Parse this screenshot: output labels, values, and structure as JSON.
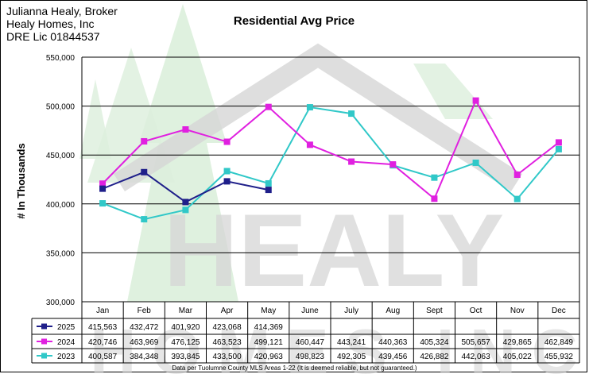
{
  "header": {
    "broker_lines": [
      "Julianna Healy, Broker",
      "Healy Homes, Inc",
      "DRE Lic 01844537"
    ]
  },
  "footnote": "Data per Tuolumne County MLS Areas 1-22 (It is deemed reliable, but not guaranteed.)",
  "watermark": {
    "text": "HEALY HOMES INC",
    "color": "#d6d6d6",
    "tree_color": "#dcefdc"
  },
  "chart_data": {
    "type": "line",
    "title": "Residential Avg Price",
    "ylabel": "# In Thousands",
    "xlabel": "",
    "ylim": [
      300000,
      550000
    ],
    "yticks": [
      300000,
      350000,
      400000,
      450000,
      500000,
      550000
    ],
    "ytick_labels": [
      "300,000",
      "350,000",
      "400,000",
      "450,000",
      "500,000",
      "550,000"
    ],
    "grid": true,
    "legend": "data-table-below",
    "categories": [
      "Jan",
      "Feb",
      "Mar",
      "Apr",
      "May",
      "June",
      "July",
      "Aug",
      "Sept",
      "Oct",
      "Nov",
      "Dec"
    ],
    "series": [
      {
        "name": "2025",
        "color": "#1f1f8a",
        "values": [
          415563,
          432472,
          401920,
          423068,
          414369,
          null,
          null,
          null,
          null,
          null,
          null,
          null
        ],
        "labels": [
          "415,563",
          "432,472",
          "401,920",
          "423,068",
          "414,369",
          "",
          "",
          "",
          "",
          "",
          "",
          ""
        ]
      },
      {
        "name": "2024",
        "color": "#e020e0",
        "values": [
          420746,
          463969,
          476125,
          463523,
          499121,
          460447,
          443241,
          440363,
          405324,
          505657,
          429865,
          462849
        ],
        "labels": [
          "420,746",
          "463,969",
          "476,125",
          "463,523",
          "499,121",
          "460,447",
          "443,241",
          "440,363",
          "405,324",
          "505,657",
          "429,865",
          "462,849"
        ]
      },
      {
        "name": "2023",
        "color": "#30c8c8",
        "values": [
          400587,
          384348,
          393845,
          433500,
          420963,
          498823,
          492305,
          439456,
          426882,
          442063,
          405022,
          455932
        ],
        "labels": [
          "400,587",
          "384,348",
          "393,845",
          "433,500",
          "420,963",
          "498,823",
          "492,305",
          "439,456",
          "426,882",
          "442,063",
          "405,022",
          "455,932"
        ]
      }
    ]
  }
}
